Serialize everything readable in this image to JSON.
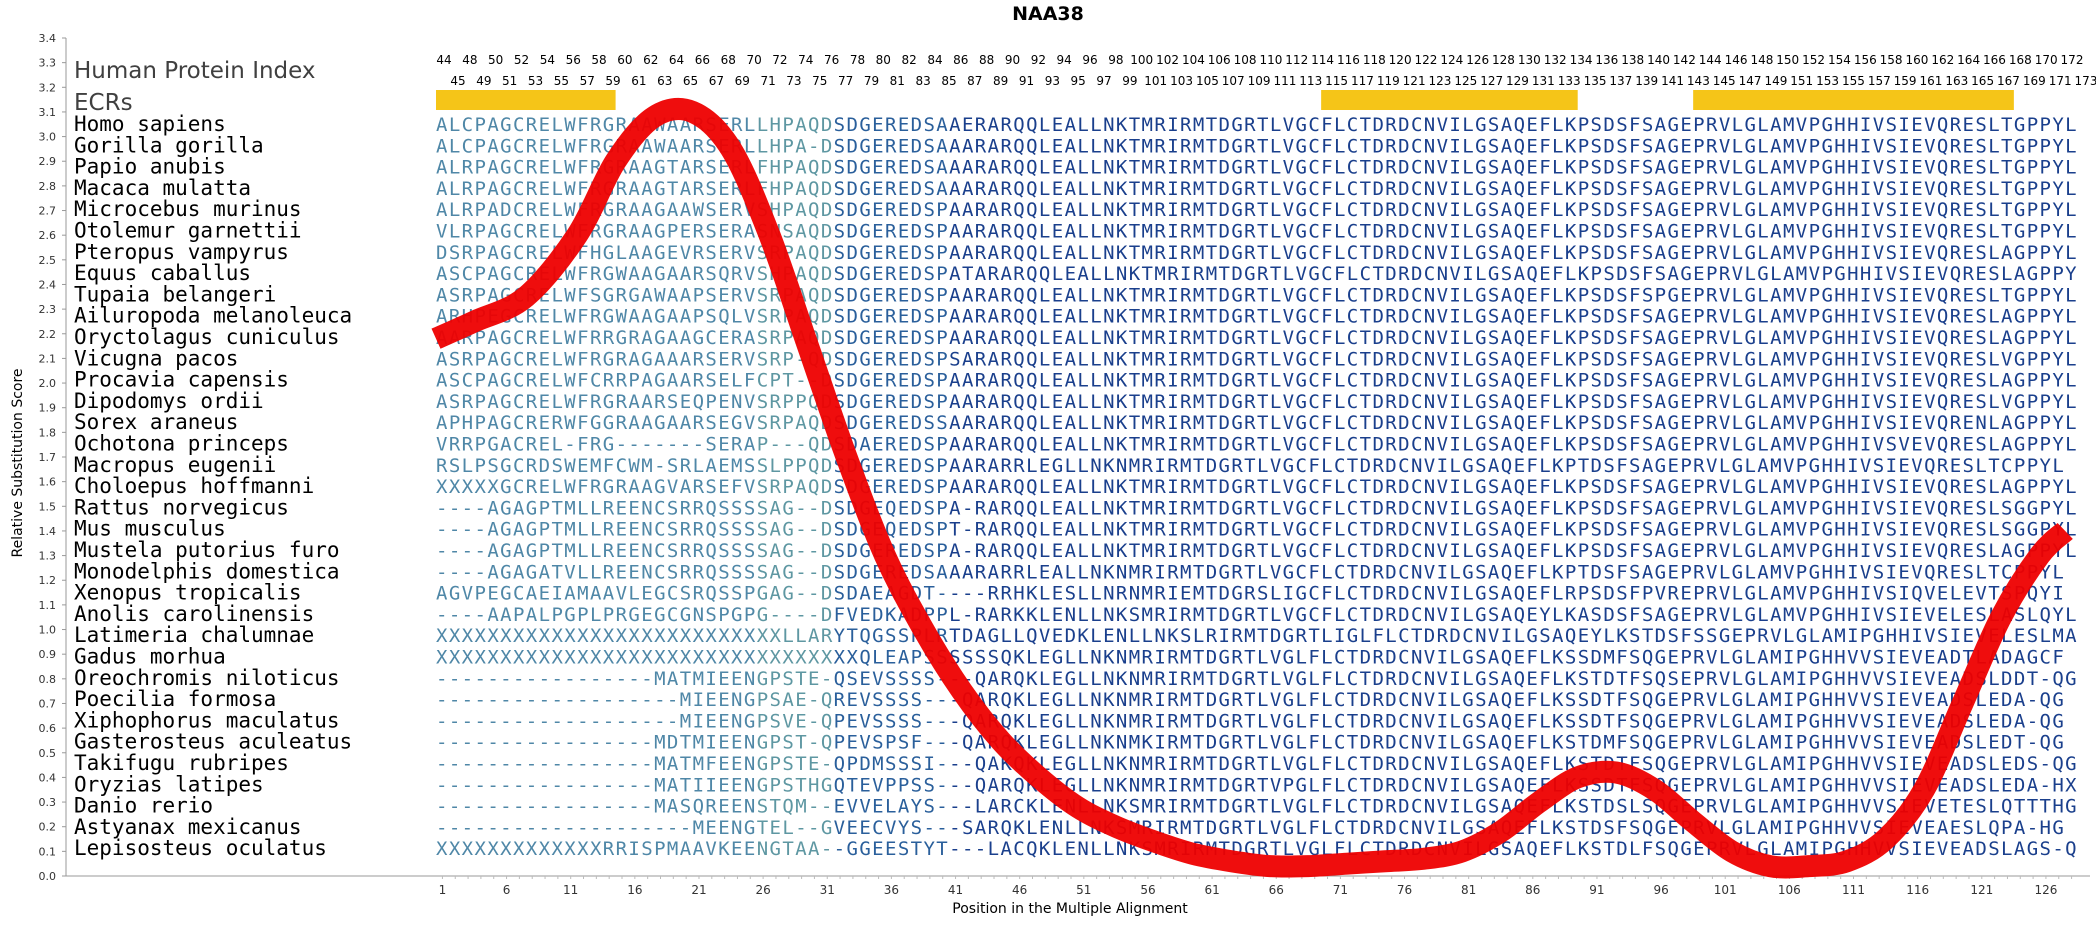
{
  "chart_data": {
    "type": "line",
    "title": "NAA38",
    "xlabel": "Position in the Multiple Alignment",
    "ylabel": "Relative Substitution Score",
    "ylim": [
      0.0,
      3.4
    ],
    "xlim": [
      1,
      128
    ],
    "x_ticks": [
      1,
      6,
      11,
      16,
      21,
      26,
      31,
      36,
      41,
      46,
      51,
      56,
      61,
      66,
      71,
      76,
      81,
      86,
      91,
      96,
      101,
      106,
      111,
      116,
      121,
      126
    ],
    "y_ticks": [
      "0.0",
      "0.1",
      "0.2",
      "0.3",
      "0.4",
      "0.5",
      "0.6",
      "0.7",
      "0.8",
      "0.9",
      "1.0",
      "1.1",
      "1.2",
      "1.3",
      "1.4",
      "1.5",
      "1.6",
      "1.7",
      "1.8",
      "1.9",
      "2.0",
      "2.1",
      "2.2",
      "2.3",
      "2.4",
      "2.5",
      "2.6",
      "2.7",
      "2.8",
      "2.9",
      "3.0",
      "3.1",
      "3.2",
      "3.3",
      "3.4"
    ],
    "index_label": "Human Protein Index",
    "ecr_label": "ECRs",
    "human_index_top": [
      "44",
      "48",
      "50",
      "52",
      "54",
      "56",
      "58",
      "60",
      "62",
      "64",
      "66",
      "68",
      "70",
      "72",
      "74",
      "76",
      "78",
      "80",
      "82",
      "84",
      "86",
      "88",
      "90",
      "92",
      "94",
      "96",
      "98",
      "100",
      "102",
      "104",
      "106",
      "108",
      "110",
      "112",
      "114",
      "116",
      "118",
      "120",
      "122",
      "124",
      "126",
      "128",
      "130",
      "132",
      "134",
      "136",
      "138",
      "140",
      "142",
      "144",
      "146",
      "148",
      "150",
      "152",
      "154",
      "156",
      "158",
      "160",
      "162",
      "164",
      "166",
      "168",
      "170",
      "172"
    ],
    "human_index_bottom": [
      "45",
      "49",
      "51",
      "53",
      "55",
      "57",
      "59",
      "61",
      "63",
      "65",
      "67",
      "69",
      "71",
      "73",
      "75",
      "77",
      "79",
      "81",
      "83",
      "85",
      "87",
      "89",
      "91",
      "93",
      "95",
      "97",
      "99",
      "101",
      "103",
      "105",
      "107",
      "109",
      "111",
      "113",
      "115",
      "117",
      "119",
      "121",
      "123",
      "125",
      "127",
      "129",
      "131",
      "133",
      "135",
      "137",
      "139",
      "141",
      "143",
      "145",
      "147",
      "149",
      "151",
      "153",
      "155",
      "157",
      "159",
      "161",
      "163",
      "165",
      "167",
      "169",
      "171",
      "173"
    ],
    "ecr_regions": [
      [
        1,
        14
      ],
      [
        70,
        89
      ],
      [
        99,
        123
      ]
    ],
    "ecr_color": "#F5C518",
    "curve_color": "#EE0000",
    "series": [
      {
        "x": [
          1,
          4,
          8,
          12,
          15,
          18,
          21,
          24,
          27,
          30,
          33,
          36,
          39,
          42,
          45,
          48,
          51,
          54,
          57,
          60,
          63,
          66,
          69,
          72,
          75,
          78,
          81,
          84,
          87,
          90,
          93,
          96,
          99,
          102,
          105,
          108,
          111,
          114,
          117,
          120,
          123,
          126,
          128
        ],
        "values": [
          2.18,
          2.25,
          2.35,
          2.6,
          2.9,
          3.08,
          3.1,
          2.95,
          2.6,
          2.15,
          1.7,
          1.3,
          1.0,
          0.75,
          0.55,
          0.4,
          0.28,
          0.2,
          0.14,
          0.09,
          0.06,
          0.04,
          0.04,
          0.05,
          0.06,
          0.07,
          0.1,
          0.18,
          0.3,
          0.4,
          0.42,
          0.35,
          0.22,
          0.1,
          0.04,
          0.04,
          0.06,
          0.15,
          0.35,
          0.7,
          1.05,
          1.3,
          1.4
        ]
      }
    ],
    "species": [
      {
        "name": "Homo sapiens",
        "seq": "ALCPAGCRELWFRGRAAWAARSERLLHPAQDSDGEREDSAAERARQQLEALLNKTMRIRMTDGRTLVGCFLCTDRDCNVILGSAQEFLKPSDSFSAGEPRVLGLAMVPGHHIVSIEVQRESLTGPPYL"
      },
      {
        "name": "Gorilla gorilla",
        "seq": "ALCPAGCRELWFRGRAAWAARSERLLHPA-DSDGEREDSAAARARQQLEALLNKTMRIRMTDGRTLVGCFLCTDRDCNVILGSAQEFLKPSDSFSAGEPRVLGLAMVPGHHIVSIEVQRESLTGPPYL"
      },
      {
        "name": "Papio anubis",
        "seq": "ALRPAGCRELWFRGRAAGTARSERLFHPAQDSDGEREDSAAARARQQLEALLNKTMRIRMTDGRTLVGCFLCTDRDCNVILGSAQEFLKPSDSFSAGEPRVLGLAMVPGHHIVSIEVQRESLTGPPYL"
      },
      {
        "name": "Macaca mulatta",
        "seq": "ALRPAGCRELWFRGRAAGTARSERLFHPAQDSDGEREDSAAARARQQLEALLNKTMRIRMTDGRTLVGCFLCTDRDCNVILGSAQEFLKPSDSFSAGEPRVLGLAMVPGHHIVSIEVQRESLTGPPYL"
      },
      {
        "name": "Microcebus murinus",
        "seq": "ALRPADCRELWFRGRAAGAAWSERVSHPAQDSDGEREDSPAARARQQLEALLNKTMRIRMTDGRTLVGCFLCTDRDCNVILGSAQEFLKPSDSFSAGEPRVLGLAMVPGHHIVSIEVQRESLTGPPYL"
      },
      {
        "name": "Otolemur garnettii",
        "seq": "VLRPAGCRELWFRGRAAGPERSERASNSAQDSDGEREDSPAARARQQLEALLNKTMRIRMTDGRTLVGCFLCTDRDCNVILGSAQEFLKPSDSFSAGEPRVLGLAMVPGHHIVSIEVQRESLTGPPYL"
      },
      {
        "name": "Pteropus vampyrus",
        "seq": "DSRPAGCRELWFHGLAAGEVRSERVSRPAQDSDGEREDSPAARARQQLEALLNKTMRIRMTDGRTLVGCFLCTDRDCNVILGSAQEFLKPSDSFSAGEPRVLGLAMVPGHHIVSIEVQRESLAGPPYL"
      },
      {
        "name": "Equus caballus",
        "seq": "ASCPAGCRELWFRGWAAGAARSQRVSHPAQDSDGEREDSPATARARQQLEALLNKTMRIRMTDGRTLVGCFLCTDRDCNVILGSAQEFLKPSDSFSAGEPRVLGLAMVPGHHIVSIEVQRESLAGPPYL"
      },
      {
        "name": "Tupaia belangeri",
        "seq": "ASRPAGCRELWFSGRGAWAAPSERVSRPAQDSDGEREDSPAARARQQLEALLNKTMRIRMTDGRTLVGCFLCTDRDCNVILGSAQEFLKPSDSFSPGEPRVLGLAMVPGHHIVSIEVQRESLTGPPYL"
      },
      {
        "name": "Ailuropoda melanoleuca",
        "seq": "ARHPEGCRELWFRGWAAGAAPSQLVSRPAQDSDGEREDSPAARARQQLEALLNKTMRIRMTDGRTLVGCFLCTDRDCNVILGSAQEFLKPSDSFSAGEPRVLGLAMVPGHHIVSIEVQRESLAGPPYL"
      },
      {
        "name": "Oryctolagus cuniculus",
        "seq": "AARPAGCRELWFRRGRAGAAGCERASRPAQDSDGEREDSPAARARQQLEALLNKTMRIRMTDGRTLVGCFLCTDRDCNVILGSAQEFLKPSDSFSAGEPRVLGLAMVPGHHIVSIEVQRESLAGPPYL"
      },
      {
        "name": "Vicugna pacos",
        "seq": "ASRPAGCRELWFRGRAGAAARSERVSRP-QDSDGEREDSPSARARQQLEALLNKTMRIRMTDGRTLVGCFLCTDRDCNVILGSAQEFLKPSDSFSAGEPRVLGLAMVPGHHIVSIEVQRESLVGPPYL"
      },
      {
        "name": "Procavia capensis",
        "seq": "ASCPAGCRELWFCRRPAGAARSELFCPT--DSDGEREDSPAARARQQLEALLNKTMRIRMTDGRTLVGCFLCTDRDCNVILGSAQEFLKPSDSFSAGEPRVLGLAMVPGHHIVSIEVQRESLAGPPYL"
      },
      {
        "name": "Dipodomys ordii",
        "seq": "ASRPAGCRELWFRGRAARSEQPENVSRPPQDSDGEREDSPAARARQQLEALLNKTMRIRMTDGRTLVGCFLCTDRDCNVILGSAQEFLKPSDSFSAGEPRVLGLAMVPGHHIVSIEVQRESLVGPPYL"
      },
      {
        "name": "Sorex araneus",
        "seq": "APHPAGCRERWFGGRAAGAARSEGVSRPAQDSDGEREDSSAARARQQLEALLNKTMRIRMTDGRTLVGCFLCTDRDCNVILGSAQEFLKPSDSFSAGEPRVLGLAMVPGHHIVSIEVQRENLAGPPYL"
      },
      {
        "name": "Ochotona princeps",
        "seq": "VRRPGACREL-FRG-------SERAP---QDSDAEREDSPAARARQQLEALLNKTMRIRMTDGRTLVGCFLCTDRDCNVILGSAQEFLKPSDSFSAGEPRVLGLAMVPGHHIVSVEVQRESLAGPPYL"
      },
      {
        "name": "Macropus eugenii",
        "seq": "RSLPSGCRDSWEMFCWM-SRLAEMSSLPPQDSDGEREDSPAARARRLEGLLNKNMRIRMTDGRTLVGCFLCTDRDCNVILGSAQEFLKPTDSFSAGEPRVLGLAMVPGHHIVSIEVQRESLTCPPYL"
      },
      {
        "name": "Choloepus hoffmanni",
        "seq": "XXXXXGCRELWFRGRAAGVARSEFVSRPAQDSDGEREDSPAARARQQLEALLNKTMRIRMTDGRTLVGCFLCTDRDCNVILGSAQEFLKPSDSFSAGEPRVLGLAMVPGHHIVSIEVQRESLAGPPYL"
      },
      {
        "name": "Rattus norvegicus",
        "seq": "----AGAGPTMLLREENCSRRQSSSSAG--DSDGEQEDSPA-RARQQLEALLNKTMRIRMTDGRTLVGCFLCTDRDCNVILGSAQEFLKPSDSFSAGEPRVLGLAMVPGHHIVSIEVQRESLSGGPYL"
      },
      {
        "name": "Mus musculus",
        "seq": "----AGAGPTMLLREENCSRRQSSSSAG--DSDGEQEDSPT-RARQQLEALLNKTMRIRMTDGRTLVGCFLCTDRDCNVILGSAQEFLKPSDSFSAGEPRVLGLAMVPGHHIVSIEVQRESLSGGPYL"
      },
      {
        "name": "Mustela putorius furo",
        "seq": "----AGAGPTMLLREENCSRRQSSSSAG--DSDGEREDSPA-RARQQLEALLNKTMRIRMTDGRTLVGCFLCTDRDCNVILGSAQEFLKPSDSFSAGEPRVLGLAMVPGHHIVSIEVQRESLAGPPYL"
      },
      {
        "name": "Monodelphis domestica",
        "seq": "----AGAGATVLLREENCSRRQSSSSAG--DSDGEREDSAAARARRLEALLNKNMRIRMTDGRTLVGCFLCTDRDCNVILGSAQEFLKPTDSFSAGEPRVLGLAMVPGHHIVSIEVQRESLTCPPYL"
      },
      {
        "name": "Xenopus tropicalis",
        "seq": "AGVPEGCAEIAMAAVLEGCSRQSSPGAG--DSDAEAGDT----RRHKLESLLNRNMRIEMTDGRSLIGCFLCTDRDCNVILGSAQEFLRPSDSFPVREPRVLGLAMVPGHHIVSIQVELEVTSPQYI"
      },
      {
        "name": "Anolis carolinensis",
        "seq": "----AAPALPGPLPRGEGCGNSPGPG----DFVEDKADPPL-RARKKLENLLNKSMRIRMTDGRTLVGCFLCTDRDCNVILGSAQEYLKASDSFSAGEPRVLGLAMVPGHHIVSIEVELESLASLQYL"
      },
      {
        "name": "Latimeria chalumnae",
        "seq": "XXXXXXXXXXXXXXXXXXXXXXXXXXXLLARYTQGSSPLRTDAGLLQVEDKLENLLNKSLRIRMTDGRTLIGLFLCTDRDCNVILGSAQEYLKSTDSFSSGEPRVLGLAMIPGHHIVSIEVELESLMAPHYL"
      },
      {
        "name": "Gadus morhua",
        "seq": "XXXXXXXXXXXXXXXXXXXXXXXXXXXXXXXXXQLEAPSSSSSSQKLEGLLNKNMRIRMTDGRTLVGLFLCTDRDCNVILGSAQEFLKSSDMFSQGEPRVLGLAMIPGHHVVSIEVEADTLADAGCF"
      },
      {
        "name": "Oreochromis niloticus",
        "seq": "-----------------MATMIEENGPSTE-QSEVSSSS---QARQKLEGLLNKNMRIRMTDGRTLVGLFLCTDRDCNVILGSAQEFLKSTDTFSQSEPRVLGLAMIPGHHVVSIEVEADSLDDT-QG"
      },
      {
        "name": "Poecilia formosa",
        "seq": "-------------------MIEENGPSAE-QREVSSSS---QARQKLEGLLNKNMRIRMTDGRTLVGLFLCTDRDCNVILGSAQEFLKSSDTFSQGEPRVLGLAMIPGHHVVSIEVEADSLEDA-QG"
      },
      {
        "name": "Xiphophorus maculatus",
        "seq": "-------------------MIEENGPSVE-QPEVSSSS---QARQKLEGLLNKNMRIRMTDGRTLVGLFLCTDRDCNVILGSAQEFLKSSDTFSQGEPRVLGLAMIPGHHVVSIEVEADSLEDA-QG"
      },
      {
        "name": "Gasterosteus aculeatus",
        "seq": "-----------------MDTMIEENGPST-QPEVSPSF---QARQKLEGLLNKNMKIRMTDGRTLVGLFLCTDRDCNVILGSAQEFLKSTDMFSQGEPRVLGLAMIPGHHVVSIEVEADSLEDT-QG"
      },
      {
        "name": "Takifugu rubripes",
        "seq": "-----------------MATMFEENGPSTE-QPDMSSSI---QAKQKLEGLLNKNMRIRMTDGRTLVGLFLCTDRDCNVILGSAQEFLKSTDTFSQGEPRVLGLAMIPGHHVVSIEVEADSLEDS-QG"
      },
      {
        "name": "Oryzias latipes",
        "seq": "-----------------MATIIEENGPSTHGQTEVPPSS---QARQKLEGLLNKNMRIRMTDGRTVPGLFLCTDRDCNVILGSAQEFLKSSDTFSQGEPRVLGLAMIPGHHVVSIEVEADSLEDA-HX"
      },
      {
        "name": "Danio rerio",
        "seq": "-----------------MASQREENSTQM--EVVELAYS---LARCKLENLLNKSMRIRMTDGRTLVGLFLCTDRDCNVILGSAQEFLKSTDSLSQGEPRVLGLAMIPGHHVVSIEVETESLQTTTHG"
      },
      {
        "name": "Astyanax mexicanus",
        "seq": "--------------------MEENGTEL--GVEECVYS---SARQKLENLLNKSMRIRMTDGRTLVGLFLCTDRDCNVILGSAQEFLKSTDSFSQGEPRVLGLAMIPGHHVVSIEVEAESLQPA-HG"
      },
      {
        "name": "Lepisosteus oculatus",
        "seq": "XXXXXXXXXXXXXRRISPMAAVKEENGTAA--GGEESTYT---LACQKLENLLNKSMRIRMTDGRTLVGLFLCTDRDCNVILGSAQEFLKSTDLFSQGEPRVLGLAMIPGHHVVSIEVEADSLAGS-QG"
      }
    ]
  }
}
